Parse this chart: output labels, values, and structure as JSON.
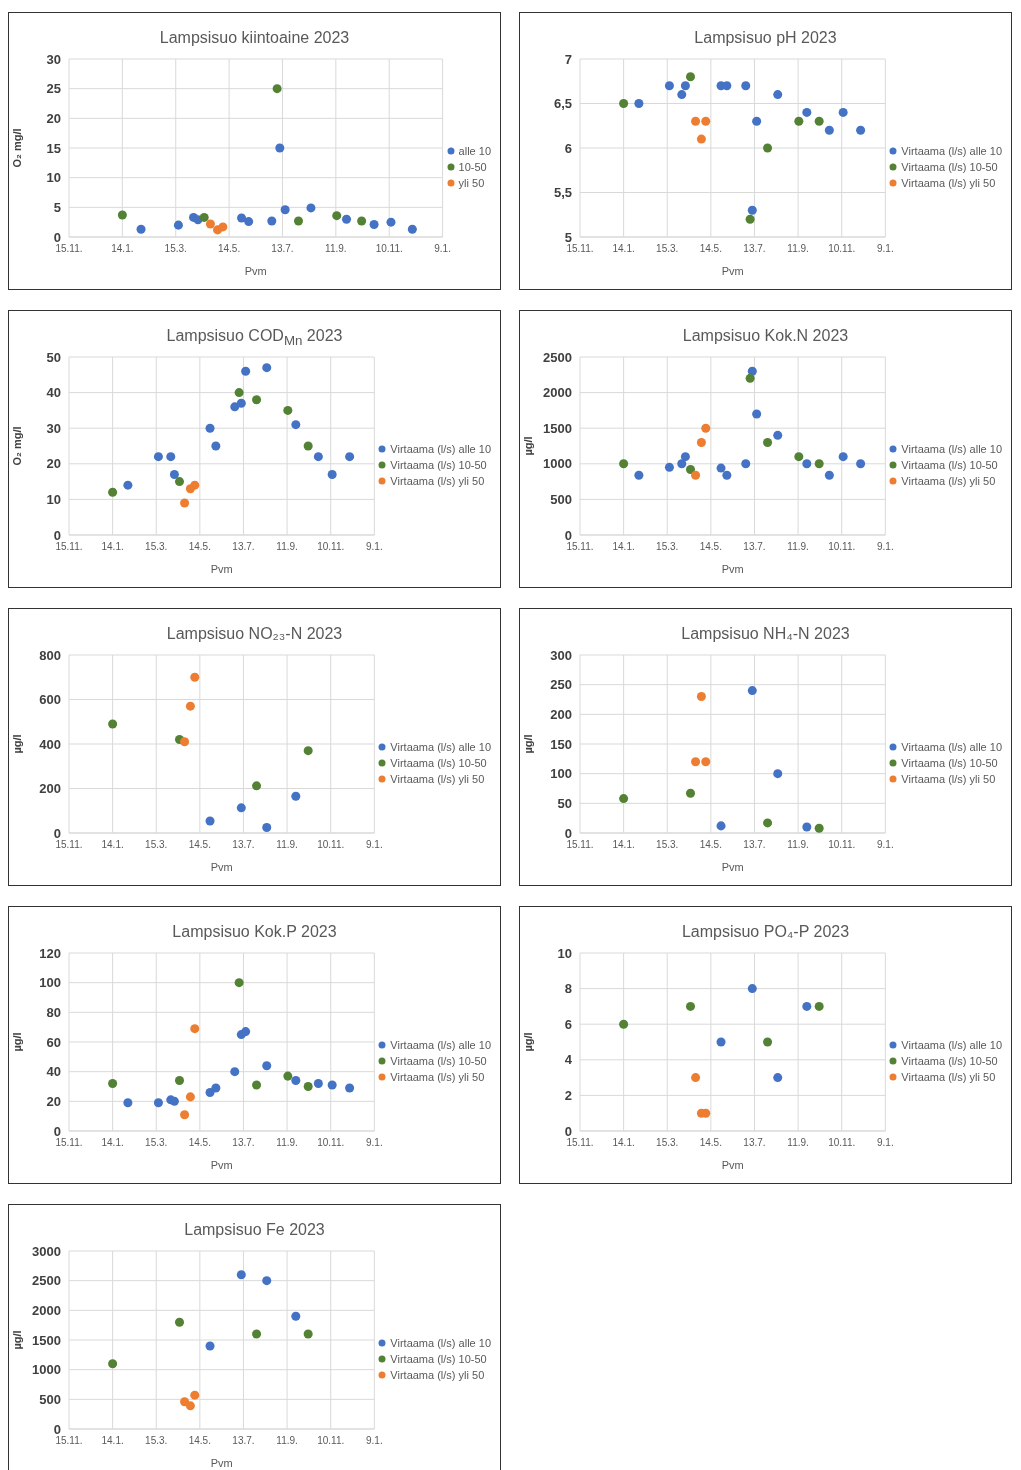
{
  "chart_data": [
    {
      "type": "scatter",
      "title": "Lampsisuo kiintoaine 2023",
      "xlabel": "Pvm",
      "ylabel": "O₂ mg/l",
      "grid": true,
      "legend": "right",
      "marker": "circle",
      "xlim": [
        "2022-11-15",
        "2024-01-09"
      ],
      "xticks": [
        {
          "value": "2022-11-15",
          "label": "15.11."
        },
        {
          "value": "2023-01-14",
          "label": "14.1."
        },
        {
          "value": "2023-03-15",
          "label": "15.3."
        },
        {
          "value": "2023-05-14",
          "label": "14.5."
        },
        {
          "value": "2023-07-13",
          "label": "13.7."
        },
        {
          "value": "2023-09-11",
          "label": "11.9."
        },
        {
          "value": "2023-11-10",
          "label": "10.11."
        },
        {
          "value": "2024-01-09",
          "label": "9.1."
        }
      ],
      "ylim": [
        0,
        30
      ],
      "yticks": [
        0,
        5,
        10,
        15,
        20,
        25,
        30
      ],
      "series": [
        {
          "name": "alle 10",
          "color": "#4472c4",
          "x": [
            "2023-02-04",
            "2023-03-18",
            "2023-04-04",
            "2023-04-09",
            "2023-05-28",
            "2023-06-05",
            "2023-07-01",
            "2023-07-10",
            "2023-07-16",
            "2023-08-14",
            "2023-09-23",
            "2023-10-24",
            "2023-11-12",
            "2023-12-06"
          ],
          "values": [
            1.3,
            2.0,
            3.3,
            2.9,
            3.2,
            2.6,
            2.7,
            15,
            4.6,
            4.9,
            3.0,
            2.1,
            2.5,
            1.3
          ]
        },
        {
          "name": "10-50",
          "color": "#548235",
          "x": [
            "2023-01-14",
            "2023-04-16",
            "2023-07-07",
            "2023-07-31",
            "2023-09-12",
            "2023-10-10"
          ],
          "values": [
            3.7,
            3.3,
            25,
            2.7,
            3.6,
            2.7
          ]
        },
        {
          "name": "yli 50",
          "color": "#ed7d31",
          "x": [
            "2023-04-23",
            "2023-05-01",
            "2023-05-07"
          ],
          "values": [
            2.2,
            1.2,
            1.7
          ]
        }
      ]
    },
    {
      "type": "scatter",
      "title": "Lampsisuo pH 2023",
      "xlabel": "Pvm",
      "grid": true,
      "legend": "right",
      "marker": "circle",
      "xlim": [
        "2022-11-15",
        "2024-01-09"
      ],
      "xticks": [
        {
          "value": "2022-11-15",
          "label": "15.11."
        },
        {
          "value": "2023-01-14",
          "label": "14.1."
        },
        {
          "value": "2023-03-15",
          "label": "15.3."
        },
        {
          "value": "2023-05-14",
          "label": "14.5."
        },
        {
          "value": "2023-07-13",
          "label": "13.7."
        },
        {
          "value": "2023-09-11",
          "label": "11.9."
        },
        {
          "value": "2023-11-10",
          "label": "10.11."
        },
        {
          "value": "2024-01-09",
          "label": "9.1."
        }
      ],
      "ylim": [
        5,
        7
      ],
      "yticks": [
        5,
        {
          "value": 5.5,
          "label": "5,5"
        },
        6,
        {
          "value": 6.5,
          "label": "6,5"
        },
        7
      ],
      "series": [
        {
          "name": "Virtaama (l/s) alle 10",
          "color": "#4472c4",
          "x": [
            "2023-02-04",
            "2023-03-18",
            "2023-04-04",
            "2023-04-09",
            "2023-05-28",
            "2023-06-05",
            "2023-07-01",
            "2023-07-10",
            "2023-07-16",
            "2023-08-14",
            "2023-09-23",
            "2023-10-24",
            "2023-11-12",
            "2023-12-06"
          ],
          "values": [
            6.5,
            6.7,
            6.6,
            6.7,
            6.7,
            6.7,
            6.7,
            5.3,
            6.3,
            6.6,
            6.4,
            6.2,
            6.4,
            6.2
          ]
        },
        {
          "name": "Virtaama (l/s) 10-50",
          "color": "#548235",
          "x": [
            "2023-01-14",
            "2023-04-16",
            "2023-07-07",
            "2023-07-31",
            "2023-09-12",
            "2023-10-10"
          ],
          "values": [
            6.5,
            6.8,
            5.2,
            6.0,
            6.3,
            6.3
          ]
        },
        {
          "name": "Virtaama (l/s) yli 50",
          "color": "#ed7d31",
          "x": [
            "2023-04-23",
            "2023-05-01",
            "2023-05-07"
          ],
          "values": [
            6.3,
            6.1,
            6.3
          ]
        }
      ]
    },
    {
      "type": "scatter",
      "title": "Lampsisuo COD$_{Mn}$ 2023",
      "xlabel": "Pvm",
      "ylabel": "O₂ mg/l",
      "grid": true,
      "legend": "right",
      "marker": "circle",
      "xlim": [
        "2022-11-15",
        "2024-01-09"
      ],
      "xticks": [
        {
          "value": "2022-11-15",
          "label": "15.11."
        },
        {
          "value": "2023-01-14",
          "label": "14.1."
        },
        {
          "value": "2023-03-15",
          "label": "15.3."
        },
        {
          "value": "2023-05-14",
          "label": "14.5."
        },
        {
          "value": "2023-07-13",
          "label": "13.7."
        },
        {
          "value": "2023-09-11",
          "label": "11.9."
        },
        {
          "value": "2023-11-10",
          "label": "10.11."
        },
        {
          "value": "2024-01-09",
          "label": "9.1."
        }
      ],
      "ylim": [
        0,
        50
      ],
      "yticks": [
        0,
        10,
        20,
        30,
        40,
        50
      ],
      "series": [
        {
          "name": "Virtaama (l/s) alle 10",
          "color": "#4472c4",
          "x": [
            "2023-02-04",
            "2023-03-18",
            "2023-04-04",
            "2023-04-09",
            "2023-05-28",
            "2023-06-05",
            "2023-07-01",
            "2023-07-10",
            "2023-07-16",
            "2023-08-14",
            "2023-09-23",
            "2023-10-24",
            "2023-11-12",
            "2023-12-06"
          ],
          "values": [
            14,
            22,
            22,
            17,
            30,
            25,
            36,
            37,
            46,
            47,
            31,
            22,
            17,
            22
          ]
        },
        {
          "name": "Virtaama (l/s) 10-50",
          "color": "#548235",
          "x": [
            "2023-01-14",
            "2023-04-16",
            "2023-07-07",
            "2023-07-31",
            "2023-09-12",
            "2023-10-10"
          ],
          "values": [
            12,
            15,
            40,
            38,
            35,
            25
          ]
        },
        {
          "name": "Virtaama (l/s) yli 50",
          "color": "#ed7d31",
          "x": [
            "2023-04-23",
            "2023-05-01",
            "2023-05-07"
          ],
          "values": [
            9,
            13,
            14
          ]
        }
      ]
    },
    {
      "type": "scatter",
      "title": "Lampsisuo Kok.N 2023",
      "xlabel": "Pvm",
      "ylabel": "µg/l",
      "grid": true,
      "legend": "right",
      "marker": "circle",
      "xlim": [
        "2022-11-15",
        "2024-01-09"
      ],
      "xticks": [
        {
          "value": "2022-11-15",
          "label": "15.11."
        },
        {
          "value": "2023-01-14",
          "label": "14.1."
        },
        {
          "value": "2023-03-15",
          "label": "15.3."
        },
        {
          "value": "2023-05-14",
          "label": "14.5."
        },
        {
          "value": "2023-07-13",
          "label": "13.7."
        },
        {
          "value": "2023-09-11",
          "label": "11.9."
        },
        {
          "value": "2023-11-10",
          "label": "10.11."
        },
        {
          "value": "2024-01-09",
          "label": "9.1."
        }
      ],
      "ylim": [
        0,
        2500
      ],
      "yticks": [
        0,
        500,
        1000,
        1500,
        2000,
        2500
      ],
      "series": [
        {
          "name": "Virtaama (l/s) alle 10",
          "color": "#4472c4",
          "x": [
            "2023-02-04",
            "2023-03-18",
            "2023-04-04",
            "2023-04-09",
            "2023-05-28",
            "2023-06-05",
            "2023-07-01",
            "2023-07-10",
            "2023-07-16",
            "2023-08-14",
            "2023-09-23",
            "2023-10-24",
            "2023-11-12",
            "2023-12-06"
          ],
          "values": [
            840,
            950,
            1000,
            1100,
            940,
            840,
            1000,
            2300,
            1700,
            1400,
            1000,
            840,
            1100,
            1000
          ]
        },
        {
          "name": "Virtaama (l/s) 10-50",
          "color": "#548235",
          "x": [
            "2023-01-14",
            "2023-04-16",
            "2023-07-07",
            "2023-07-31",
            "2023-09-12",
            "2023-10-10"
          ],
          "values": [
            1000,
            920,
            2200,
            1300,
            1100,
            1000
          ]
        },
        {
          "name": "Virtaama (l/s) yli 50",
          "color": "#ed7d31",
          "x": [
            "2023-04-23",
            "2023-05-01",
            "2023-05-07"
          ],
          "values": [
            840,
            1300,
            1500
          ]
        }
      ]
    },
    {
      "type": "scatter",
      "title": "Lampsisuo NO₂₃-N 2023",
      "xlabel": "Pvm",
      "ylabel": "µg/l",
      "grid": true,
      "legend": "right",
      "marker": "circle",
      "xlim": [
        "2022-11-15",
        "2024-01-09"
      ],
      "xticks": [
        {
          "value": "2022-11-15",
          "label": "15.11."
        },
        {
          "value": "2023-01-14",
          "label": "14.1."
        },
        {
          "value": "2023-03-15",
          "label": "15.3."
        },
        {
          "value": "2023-05-14",
          "label": "14.5."
        },
        {
          "value": "2023-07-13",
          "label": "13.7."
        },
        {
          "value": "2023-09-11",
          "label": "11.9."
        },
        {
          "value": "2023-11-10",
          "label": "10.11."
        },
        {
          "value": "2024-01-09",
          "label": "9.1."
        }
      ],
      "ylim": [
        0,
        800
      ],
      "yticks": [
        0,
        200,
        400,
        600,
        800
      ],
      "series": [
        {
          "name": "Virtaama (l/s) alle 10",
          "color": "#4472c4",
          "x": [
            "2023-05-28",
            "2023-07-10",
            "2023-08-14",
            "2023-09-23"
          ],
          "values": [
            54,
            113,
            25,
            165
          ]
        },
        {
          "name": "Virtaama (l/s) 10-50",
          "color": "#548235",
          "x": [
            "2023-01-14",
            "2023-04-16",
            "2023-07-31",
            "2023-10-10"
          ],
          "values": [
            490,
            420,
            212,
            370
          ]
        },
        {
          "name": "Virtaama (l/s) yli 50",
          "color": "#ed7d31",
          "x": [
            "2023-04-23",
            "2023-05-01",
            "2023-05-07"
          ],
          "values": [
            410,
            570,
            700
          ]
        }
      ]
    },
    {
      "type": "scatter",
      "title": "Lampsisuo NH₄-N 2023",
      "xlabel": "Pvm",
      "ylabel": "µg/l",
      "grid": true,
      "legend": "right",
      "marker": "circle",
      "xlim": [
        "2022-11-15",
        "2024-01-09"
      ],
      "xticks": [
        {
          "value": "2022-11-15",
          "label": "15.11."
        },
        {
          "value": "2023-01-14",
          "label": "14.1."
        },
        {
          "value": "2023-03-15",
          "label": "15.3."
        },
        {
          "value": "2023-05-14",
          "label": "14.5."
        },
        {
          "value": "2023-07-13",
          "label": "13.7."
        },
        {
          "value": "2023-09-11",
          "label": "11.9."
        },
        {
          "value": "2023-11-10",
          "label": "10.11."
        },
        {
          "value": "2024-01-09",
          "label": "9.1."
        }
      ],
      "ylim": [
        0,
        300
      ],
      "yticks": [
        0,
        50,
        100,
        150,
        200,
        250,
        300
      ],
      "series": [
        {
          "name": "Virtaama (l/s) alle 10",
          "color": "#4472c4",
          "x": [
            "2023-05-28",
            "2023-07-10",
            "2023-08-14",
            "2023-09-23"
          ],
          "values": [
            12,
            240,
            100,
            10
          ]
        },
        {
          "name": "Virtaama (l/s) 10-50",
          "color": "#548235",
          "x": [
            "2023-01-14",
            "2023-04-16",
            "2023-07-31",
            "2023-10-10"
          ],
          "values": [
            58,
            67,
            17,
            8
          ]
        },
        {
          "name": "Virtaama (l/s) yli 50",
          "color": "#ed7d31",
          "x": [
            "2023-04-23",
            "2023-05-01",
            "2023-05-07"
          ],
          "values": [
            120,
            230,
            120
          ]
        }
      ]
    },
    {
      "type": "scatter",
      "title": "Lampsisuo Kok.P 2023",
      "xlabel": "Pvm",
      "ylabel": "µg/l",
      "grid": true,
      "legend": "right",
      "marker": "circle",
      "xlim": [
        "2022-11-15",
        "2024-01-09"
      ],
      "xticks": [
        {
          "value": "2022-11-15",
          "label": "15.11."
        },
        {
          "value": "2023-01-14",
          "label": "14.1."
        },
        {
          "value": "2023-03-15",
          "label": "15.3."
        },
        {
          "value": "2023-05-14",
          "label": "14.5."
        },
        {
          "value": "2023-07-13",
          "label": "13.7."
        },
        {
          "value": "2023-09-11",
          "label": "11.9."
        },
        {
          "value": "2023-11-10",
          "label": "10.11."
        },
        {
          "value": "2024-01-09",
          "label": "9.1."
        }
      ],
      "ylim": [
        0,
        120
      ],
      "yticks": [
        0,
        20,
        40,
        60,
        80,
        100,
        120
      ],
      "series": [
        {
          "name": "Virtaama (l/s) alle 10",
          "color": "#4472c4",
          "x": [
            "2023-02-04",
            "2023-03-18",
            "2023-04-04",
            "2023-04-09",
            "2023-05-28",
            "2023-06-05",
            "2023-07-01",
            "2023-07-10",
            "2023-07-16",
            "2023-08-14",
            "2023-09-23",
            "2023-10-24",
            "2023-11-12",
            "2023-12-06"
          ],
          "values": [
            19,
            19,
            21,
            20,
            26,
            29,
            40,
            65,
            67,
            44,
            34,
            32,
            31,
            29
          ]
        },
        {
          "name": "Virtaama (l/s) 10-50",
          "color": "#548235",
          "x": [
            "2023-01-14",
            "2023-04-16",
            "2023-07-07",
            "2023-07-31",
            "2023-09-12",
            "2023-10-10"
          ],
          "values": [
            32,
            34,
            100,
            31,
            37,
            30
          ]
        },
        {
          "name": "Virtaama (l/s) yli 50",
          "color": "#ed7d31",
          "x": [
            "2023-04-23",
            "2023-05-01",
            "2023-05-07"
          ],
          "values": [
            11,
            23,
            69
          ]
        }
      ]
    },
    {
      "type": "scatter",
      "title": "Lampsisuo PO₄-P 2023",
      "xlabel": "Pvm",
      "ylabel": "µg/l",
      "grid": true,
      "legend": "right",
      "marker": "circle",
      "xlim": [
        "2022-11-15",
        "2024-01-09"
      ],
      "xticks": [
        {
          "value": "2022-11-15",
          "label": "15.11."
        },
        {
          "value": "2023-01-14",
          "label": "14.1."
        },
        {
          "value": "2023-03-15",
          "label": "15.3."
        },
        {
          "value": "2023-05-14",
          "label": "14.5."
        },
        {
          "value": "2023-07-13",
          "label": "13.7."
        },
        {
          "value": "2023-09-11",
          "label": "11.9."
        },
        {
          "value": "2023-11-10",
          "label": "10.11."
        },
        {
          "value": "2024-01-09",
          "label": "9.1."
        }
      ],
      "ylim": [
        0,
        10
      ],
      "yticks": [
        0,
        2,
        4,
        6,
        8,
        10
      ],
      "series": [
        {
          "name": "Virtaama (l/s) alle 10",
          "color": "#4472c4",
          "x": [
            "2023-05-28",
            "2023-07-10",
            "2023-08-14",
            "2023-09-23"
          ],
          "values": [
            5,
            8,
            3,
            7
          ]
        },
        {
          "name": "Virtaama (l/s) 10-50",
          "color": "#548235",
          "x": [
            "2023-01-14",
            "2023-04-16",
            "2023-07-31",
            "2023-10-10"
          ],
          "values": [
            6,
            7,
            5,
            7
          ]
        },
        {
          "name": "Virtaama (l/s) yli 50",
          "color": "#ed7d31",
          "x": [
            "2023-04-23",
            "2023-05-01",
            "2023-05-07"
          ],
          "values": [
            3,
            1,
            1
          ]
        }
      ]
    },
    {
      "type": "scatter",
      "title": "Lampsisuo Fe 2023",
      "xlabel": "Pvm",
      "ylabel": "µg/l",
      "grid": true,
      "legend": "right",
      "marker": "circle",
      "xlim": [
        "2022-11-15",
        "2024-01-09"
      ],
      "xticks": [
        {
          "value": "2022-11-15",
          "label": "15.11."
        },
        {
          "value": "2023-01-14",
          "label": "14.1."
        },
        {
          "value": "2023-03-15",
          "label": "15.3."
        },
        {
          "value": "2023-05-14",
          "label": "14.5."
        },
        {
          "value": "2023-07-13",
          "label": "13.7."
        },
        {
          "value": "2023-09-11",
          "label": "11.9."
        },
        {
          "value": "2023-11-10",
          "label": "10.11."
        },
        {
          "value": "2024-01-09",
          "label": "9.1."
        }
      ],
      "ylim": [
        0,
        3000
      ],
      "yticks": [
        0,
        500,
        1000,
        1500,
        2000,
        2500,
        3000
      ],
      "series": [
        {
          "name": "Virtaama (l/s) alle 10",
          "color": "#4472c4",
          "x": [
            "2023-05-28",
            "2023-07-10",
            "2023-08-14",
            "2023-09-23"
          ],
          "values": [
            1400,
            2600,
            2500,
            1900
          ]
        },
        {
          "name": "Virtaama (l/s) 10-50",
          "color": "#548235",
          "x": [
            "2023-01-14",
            "2023-04-16",
            "2023-07-31",
            "2023-10-10"
          ],
          "values": [
            1100,
            1800,
            1600,
            1600
          ]
        },
        {
          "name": "Virtaama (l/s) yli 50",
          "color": "#ed7d31",
          "x": [
            "2023-04-23",
            "2023-05-01",
            "2023-05-07"
          ],
          "values": [
            460,
            390,
            570
          ]
        }
      ]
    }
  ]
}
